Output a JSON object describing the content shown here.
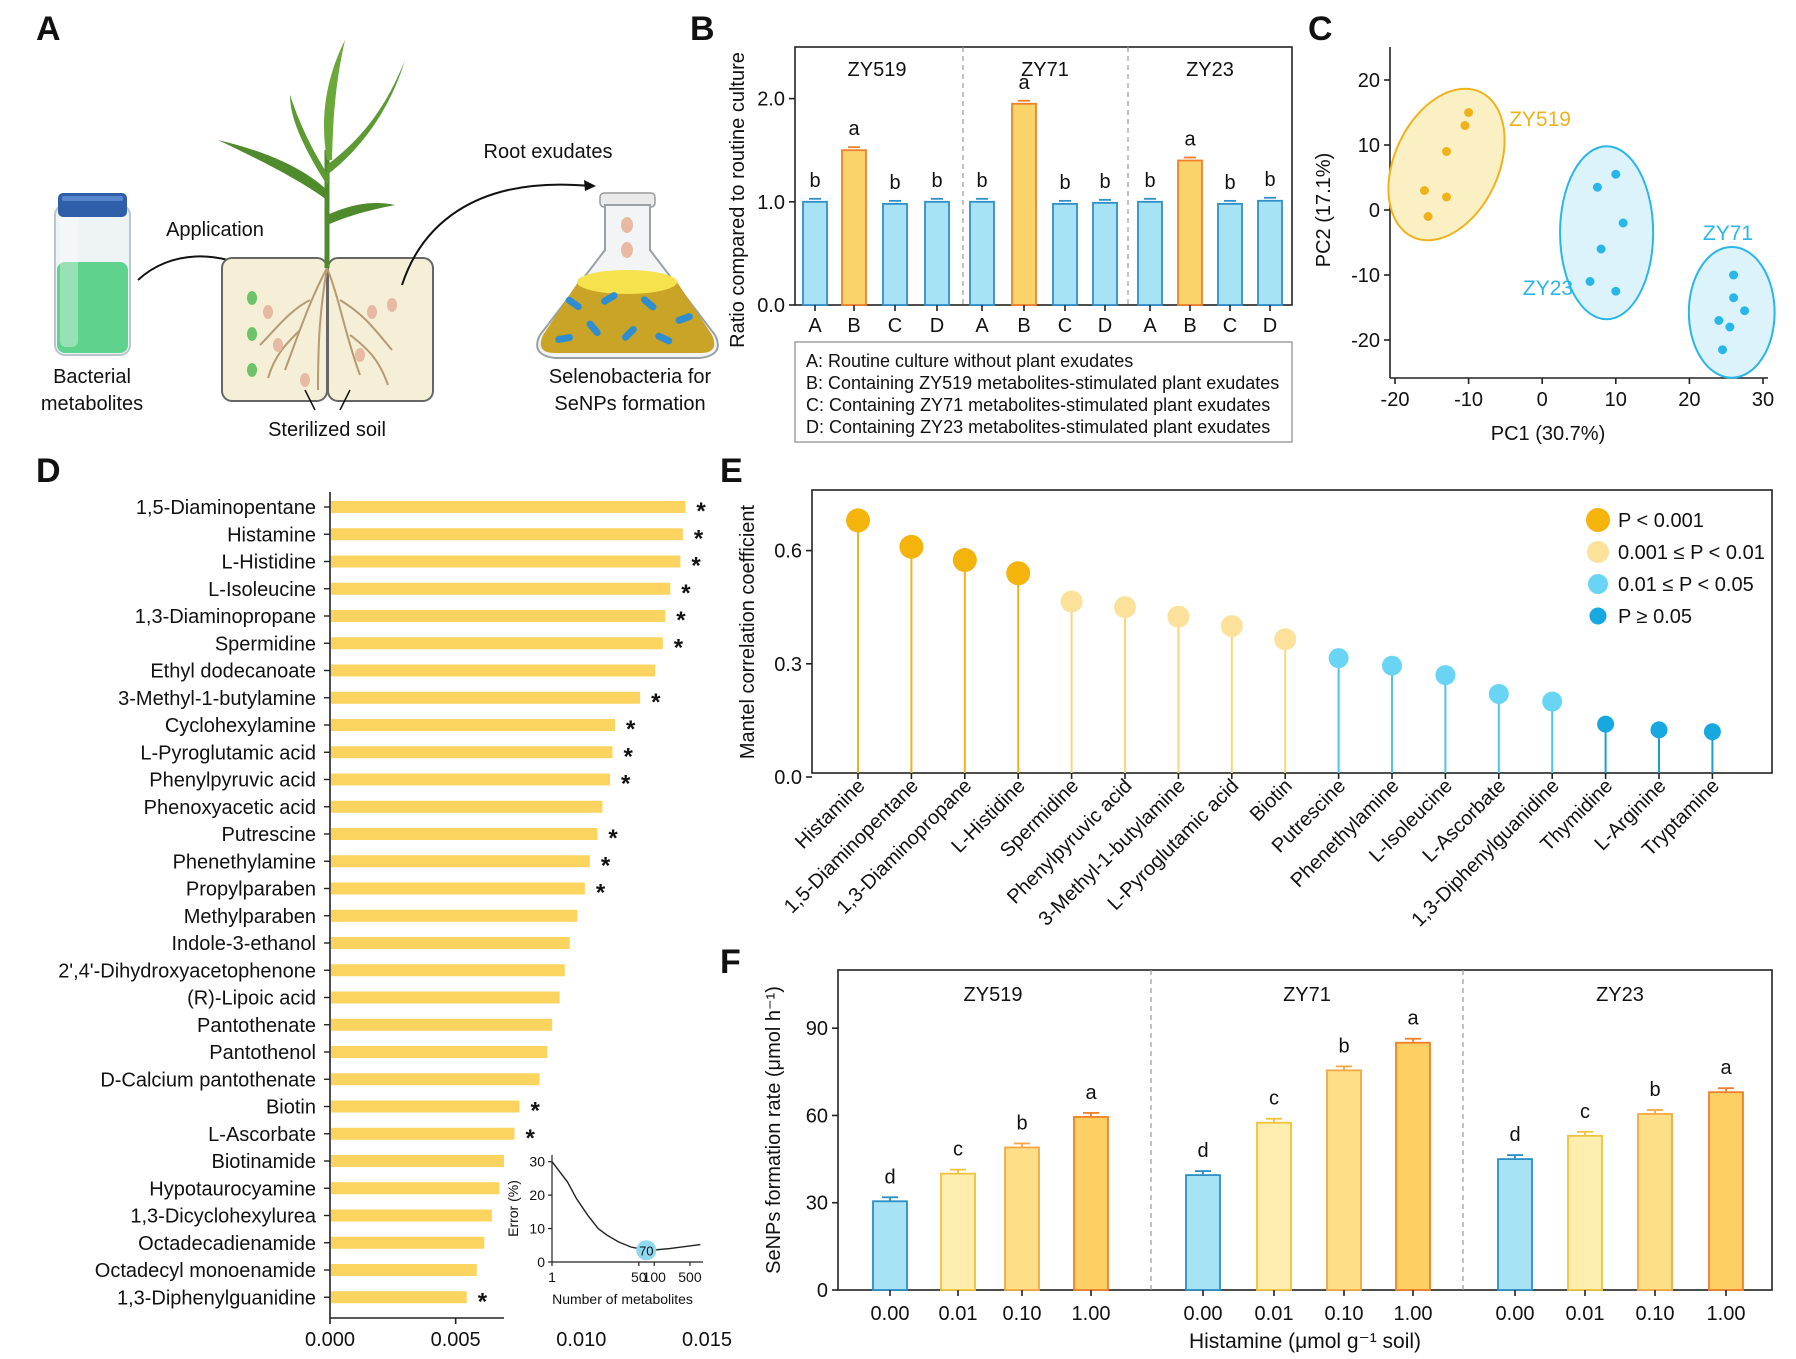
{
  "panels": {
    "A": {
      "label": "A",
      "vial_label": [
        "Bacterial",
        "metabolites"
      ],
      "application": "Application",
      "soil": "Sterilized soil",
      "root_exudates": "Root exudates",
      "flask_label": [
        "Selenobacteria for",
        "SeNPs formation"
      ],
      "colors": {
        "vial": "#5fd38e",
        "cap": "#2f5fa8",
        "soil": "#f5efd7",
        "plant": "#4f8a2c",
        "flask_liquid": "#c9a426"
      }
    },
    "B": {
      "label": "B"
    },
    "C": {
      "label": "C"
    },
    "D": {
      "label": "D"
    },
    "E": {
      "label": "E"
    },
    "F": {
      "label": "F"
    }
  },
  "chart_data": [
    {
      "id": "B",
      "type": "bar",
      "ylabel": "Ratio compared to routine culture",
      "ylim": [
        0,
        2.5
      ],
      "yticks": [
        0.0,
        1.0,
        2.0
      ],
      "ytick_labels": [
        "0.0",
        "1.0",
        "2.0"
      ],
      "groups": [
        {
          "name": "ZY519",
          "categories": [
            "A",
            "B",
            "C",
            "D"
          ],
          "values": [
            1.0,
            1.5,
            0.98,
            1.0
          ],
          "letters": [
            "b",
            "a",
            "b",
            "b"
          ]
        },
        {
          "name": "ZY71",
          "categories": [
            "A",
            "B",
            "C",
            "D"
          ],
          "values": [
            1.0,
            1.95,
            0.98,
            0.99
          ],
          "letters": [
            "b",
            "a",
            "b",
            "b"
          ]
        },
        {
          "name": "ZY23",
          "categories": [
            "A",
            "B",
            "C",
            "D"
          ],
          "values": [
            1.0,
            1.4,
            0.98,
            1.01
          ],
          "letters": [
            "b",
            "a",
            "b",
            "b"
          ]
        }
      ],
      "legend": [
        "A: Routine culture without plant exudates",
        "B: Containing ZY519 metabolites-stimulated plant exudates",
        "C: Containing ZY71 metabolites-stimulated plant exudates",
        "D: Containing ZY23 metabolites-stimulated plant exudates"
      ],
      "colors": {
        "control": "#a8e2f5",
        "control_edge": "#2f8fc8",
        "treated": "#fbd36b",
        "treated_edge": "#f07f2a"
      }
    },
    {
      "id": "C",
      "type": "scatter",
      "xlabel": "PC1 (30.7%)",
      "ylabel": "PC2 (17.1%)",
      "xlim": [
        -20,
        30
      ],
      "ylim": [
        -25,
        22
      ],
      "xticks": [
        -20,
        -10,
        0,
        10,
        20,
        30
      ],
      "xtick_labels": [
        "-20",
        "-10",
        "0",
        "10",
        "20",
        "30"
      ],
      "yticks": [
        -20,
        -10,
        0,
        10,
        20
      ],
      "ytick_labels": [
        "-20",
        "-10",
        "0",
        "10",
        "20"
      ],
      "series": [
        {
          "name": "ZY519",
          "color": "#f0b21a",
          "fill": "#fbf0c4",
          "points": [
            [
              -10,
              15
            ],
            [
              -10.5,
              13
            ],
            [
              -13,
              9
            ],
            [
              -16,
              3
            ],
            [
              -15.5,
              -1
            ],
            [
              -13,
              2
            ]
          ]
        },
        {
          "name": "ZY23",
          "color": "#29b6e8",
          "fill": "#dcf3fb",
          "points": [
            [
              10,
              5.5
            ],
            [
              7.5,
              3.5
            ],
            [
              11,
              -2
            ],
            [
              8,
              -6
            ],
            [
              6.5,
              -11
            ],
            [
              10,
              -12.5
            ]
          ]
        },
        {
          "name": "ZY71",
          "color": "#29b6e8",
          "fill": "#dcf3fb",
          "points": [
            [
              26,
              -10
            ],
            [
              26,
              -13.5
            ],
            [
              24,
              -17
            ],
            [
              27.5,
              -15.5
            ],
            [
              25.5,
              -18
            ],
            [
              24.5,
              -21.5
            ]
          ]
        }
      ]
    },
    {
      "id": "D",
      "type": "bar",
      "orientation": "horizontal",
      "xlim": [
        0,
        0.015
      ],
      "xticks": [
        0,
        0.005,
        0.01,
        0.015
      ],
      "xtick_labels": [
        "0.000",
        "0.005",
        "0.010",
        "0.015"
      ],
      "bar_color": "#fbd460",
      "categories": [
        "1,5-Diaminopentane",
        "Histamine",
        "L-Histidine",
        "L-Isoleucine",
        "1,3-Diaminopropane",
        "Spermidine",
        "Ethyl dodecanoate",
        "3-Methyl-1-butylamine",
        "Cyclohexylamine",
        "L-Pyroglutamic acid",
        "Phenylpyruvic acid",
        "Phenoxyacetic acid",
        "Putrescine",
        "Phenethylamine",
        "Propylparaben",
        "Methylparaben",
        "Indole-3-ethanol",
        "2',4'-Dihydroxyacetophenone",
        "(R)-Lipoic acid",
        "Pantothenate",
        "Pantothenol",
        "D-Calcium pantothenate",
        "Biotin",
        "L-Ascorbate",
        "Biotinamide",
        "Hypotaurocyamine",
        "1,3-Dicyclohexylurea",
        "Octadecadienamide",
        "Octadecyl monoenamide",
        "1,3-Diphenylguanidine"
      ],
      "values": [
        0.0141,
        0.014,
        0.0139,
        0.0135,
        0.0133,
        0.0132,
        0.0129,
        0.0123,
        0.0113,
        0.0112,
        0.0111,
        0.0108,
        0.0106,
        0.0103,
        0.0101,
        0.0098,
        0.0095,
        0.0093,
        0.0091,
        0.0088,
        0.0086,
        0.0083,
        0.0075,
        0.0073,
        0.0069,
        0.0067,
        0.0064,
        0.0061,
        0.0058,
        0.0054
      ],
      "significant": [
        true,
        true,
        true,
        true,
        true,
        true,
        false,
        true,
        true,
        true,
        true,
        false,
        true,
        true,
        true,
        false,
        false,
        false,
        false,
        false,
        false,
        false,
        true,
        true,
        false,
        false,
        false,
        false,
        false,
        true
      ],
      "star": "*",
      "inset": {
        "xlabel": "Number of metabolites",
        "ylabel": "Error (%)",
        "xticks": [
          1,
          50,
          100,
          500
        ],
        "xtick_labels": [
          "1",
          "50",
          "100",
          "500"
        ],
        "yticks": [
          0,
          10,
          20,
          30
        ],
        "ytick_labels": [
          "0",
          "10",
          "20",
          "30"
        ],
        "curve": [
          [
            1,
            30
          ],
          [
            2,
            24
          ],
          [
            3,
            19
          ],
          [
            5,
            14
          ],
          [
            8,
            10
          ],
          [
            12,
            8
          ],
          [
            20,
            6
          ],
          [
            35,
            4.5
          ],
          [
            50,
            4
          ],
          [
            70,
            3.5
          ],
          [
            100,
            3.6
          ],
          [
            200,
            4
          ],
          [
            400,
            4.6
          ],
          [
            800,
            5.2
          ]
        ],
        "marker": {
          "x": 70,
          "y": 3.5,
          "label": "70"
        }
      }
    },
    {
      "id": "E",
      "type": "lollipop",
      "ylabel": "Mantel correlation coefficient",
      "ylim": [
        0,
        0.75
      ],
      "yticks": [
        0,
        0.3,
        0.6
      ],
      "ytick_labels": [
        "0.0",
        "0.3",
        "0.6"
      ],
      "categories": [
        "Histamine",
        "1,5-Diaminopentane",
        "1,3-Diaminopropane",
        "L-Histidine",
        "Spermidine",
        "Phenylpyruvic acid",
        "3-Methyl-1-butylamine",
        "L-Pyroglutamic acid",
        "Biotin",
        "Putrescine",
        "Phenethylamine",
        "L-Isoleucine",
        "L-Ascorbate",
        "1,3-Diphenylguanidine",
        "Thymidine",
        "L-Arginine",
        "Tryptamine"
      ],
      "values": [
        0.68,
        0.61,
        0.575,
        0.54,
        0.465,
        0.45,
        0.425,
        0.4,
        0.365,
        0.315,
        0.295,
        0.27,
        0.22,
        0.2,
        0.14,
        0.125,
        0.12
      ],
      "class": [
        0,
        0,
        0,
        0,
        1,
        1,
        1,
        1,
        1,
        2,
        2,
        2,
        2,
        2,
        3,
        3,
        3
      ],
      "legend": [
        {
          "label": "P < 0.001",
          "color": "#f5b40c"
        },
        {
          "label": "0.001 ≤ P < 0.01",
          "color": "#fbe19a"
        },
        {
          "label": "0.01 ≤ P < 0.05",
          "color": "#6ad4f4"
        },
        {
          "label": "P ≥ 0.05",
          "color": "#17a8e2"
        }
      ]
    },
    {
      "id": "F",
      "type": "bar",
      "ylabel": "SeNPs formation rate (μmol h⁻¹)",
      "xlabel": "Histamine (μmol g⁻¹ soil)",
      "ylim": [
        0,
        110
      ],
      "yticks": [
        0,
        30,
        60,
        90
      ],
      "ytick_labels": [
        "0",
        "30",
        "60",
        "90"
      ],
      "doses": [
        "0.00",
        "0.01",
        "0.10",
        "1.00"
      ],
      "groups": [
        {
          "name": "ZY519",
          "values": [
            30.5,
            40,
            49,
            59.5
          ],
          "letters": [
            "d",
            "c",
            "b",
            "a"
          ]
        },
        {
          "name": "ZY71",
          "values": [
            39.5,
            57.5,
            75.5,
            85
          ],
          "letters": [
            "d",
            "c",
            "b",
            "a"
          ]
        },
        {
          "name": "ZY23",
          "values": [
            45,
            53,
            60.5,
            68
          ],
          "letters": [
            "d",
            "c",
            "b",
            "a"
          ]
        }
      ],
      "fills": [
        "#a8e2f5",
        "#fdeeb0",
        "#fddf88",
        "#fcd062"
      ],
      "edges": [
        "#2a8fc6",
        "#f0c23a",
        "#f3a843",
        "#f07f2a"
      ]
    }
  ]
}
